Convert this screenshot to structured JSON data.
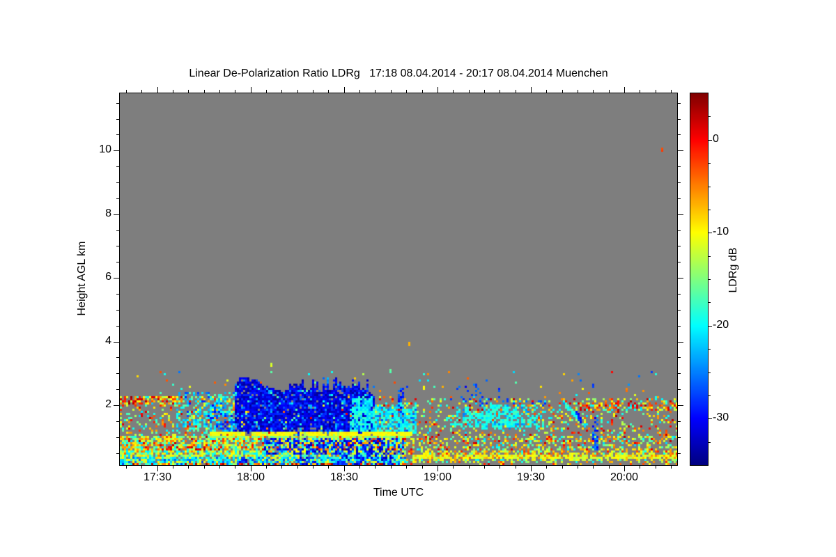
{
  "chart_data": {
    "type": "heatmap",
    "title": "Linear De-Polarization Ratio LDRg   17:18 08.04.2014 - 20:17 08.04.2014 Muenchen",
    "xlabel": "Time UTC",
    "ylabel": "Height AGL km",
    "colorbar_label": "LDRg dB",
    "time_start": "17:18",
    "time_end": "20:17",
    "date": "08.04.2014",
    "station": "Muenchen",
    "x_range_minutes": [
      0,
      179
    ],
    "y_range_km": [
      0.12,
      11.8
    ],
    "value_range_db": [
      -35,
      5
    ],
    "colormap": "jet",
    "nan_color": "#7e7e7e",
    "grid": false,
    "x_ticks": [
      {
        "label": "17:30",
        "minute": 12
      },
      {
        "label": "18:00",
        "minute": 42
      },
      {
        "label": "18:30",
        "minute": 72
      },
      {
        "label": "19:00",
        "minute": 102
      },
      {
        "label": "19:30",
        "minute": 132
      },
      {
        "label": "20:00",
        "minute": 162
      }
    ],
    "x_minor_step_minutes": 5,
    "y_ticks_km": [
      2,
      4,
      6,
      8,
      10
    ],
    "y_minor_step_km": 0.5,
    "colorbar_ticks_db": [
      0,
      -10,
      -20,
      -30
    ],
    "colorbar_minor_step_db": 2.5,
    "seed": 7,
    "features": {
      "speckle_layers": [
        {
          "desc": "mid-level noise speckle left",
          "t": [
            0,
            92
          ],
          "h": [
            1.05,
            2.3
          ],
          "density": 0.3,
          "pal": [
            [
              0.45,
              -12,
              2
            ],
            [
              0.3,
              -22,
              -15
            ],
            [
              0.25,
              -15,
              -10
            ]
          ]
        },
        {
          "desc": "mid-level noise speckle right",
          "t": [
            92,
            179
          ],
          "h": [
            1.05,
            2.25
          ],
          "density": 0.2,
          "pal": [
            [
              0.5,
              -12,
              3
            ],
            [
              0.28,
              -22,
              -15
            ],
            [
              0.22,
              -15,
              -10
            ]
          ]
        },
        {
          "desc": "sparse specks above 2.25 km",
          "t": [
            0,
            179
          ],
          "h": [
            2.25,
            3.1
          ],
          "density": 0.02,
          "pal": [
            [
              0.5,
              -12,
              0
            ],
            [
              0.3,
              -22,
              -14
            ],
            [
              0.2,
              -28,
              -24
            ]
          ]
        },
        {
          "desc": "red clutter band top-left 2.1 km",
          "t": [
            0,
            20
          ],
          "h": [
            2.02,
            2.28
          ],
          "density": 0.5,
          "pal": [
            [
              0.7,
              -8,
              4
            ],
            [
              0.3,
              -14,
              -9
            ]
          ]
        },
        {
          "desc": "cyan wisps before cloud",
          "t": [
            18,
            37
          ],
          "h": [
            1.1,
            2.4
          ],
          "density": 0.3,
          "pal": [
            [
              0.8,
              -24,
              -16
            ],
            [
              0.2,
              -29,
              -25
            ]
          ]
        },
        {
          "desc": "dense low warm speckle left 0.6-1 km",
          "t": [
            0,
            92
          ],
          "h": [
            0.6,
            1.05
          ],
          "density": 0.8,
          "pal": [
            [
              0.5,
              -13,
              -4
            ],
            [
              0.13,
              -3,
              3
            ],
            [
              0.17,
              -17,
              -13
            ],
            [
              0.2,
              -22,
              -17
            ]
          ]
        },
        {
          "desc": "low mixed layer left",
          "t": [
            0,
            92
          ],
          "h": [
            0.35,
            0.6
          ],
          "density": 0.85,
          "pal": [
            [
              0.38,
              -16,
              -9
            ],
            [
              0.37,
              -22,
              -16
            ],
            [
              0.25,
              -12,
              -4
            ]
          ]
        },
        {
          "desc": "cyan band left 0.2-0.35 km",
          "t": [
            0,
            92
          ],
          "h": [
            0.2,
            0.35
          ],
          "density": 0.88,
          "pal": [
            [
              0.55,
              -23,
              -17
            ],
            [
              0.28,
              -14,
              -8
            ],
            [
              0.17,
              -28,
              -24
            ]
          ]
        },
        {
          "desc": "multicolor ground line left",
          "t": [
            0,
            92
          ],
          "h": [
            0.12,
            0.2
          ],
          "density": 0.92,
          "pal": [
            [
              0.3,
              -8,
              0
            ],
            [
              0.2,
              2,
              5
            ],
            [
              0.2,
              -22,
              -16
            ],
            [
              0.15,
              -30,
              -25
            ],
            [
              0.15,
              -14,
              -9
            ]
          ]
        },
        {
          "desc": "low warm speckle right",
          "t": [
            92,
            179
          ],
          "h": [
            0.6,
            1.05
          ],
          "density": 0.42,
          "pal": [
            [
              0.5,
              -13,
              -4
            ],
            [
              0.15,
              -3,
              3
            ],
            [
              0.2,
              -17,
              -13
            ],
            [
              0.15,
              -22,
              -17
            ]
          ]
        },
        {
          "desc": "yellow layer right 0.45-0.6",
          "t": [
            92,
            179
          ],
          "h": [
            0.45,
            0.6
          ],
          "density": 0.6,
          "pal": [
            [
              0.6,
              -14,
              -7
            ],
            [
              0.25,
              -7,
              -1
            ],
            [
              0.15,
              -20,
              -15
            ]
          ]
        },
        {
          "desc": "low cyan-yellow right 0.2-0.33",
          "t": [
            92,
            179
          ],
          "h": [
            0.2,
            0.33
          ],
          "density": 0.45,
          "pal": [
            [
              0.5,
              -14,
              -8
            ],
            [
              0.3,
              -21,
              -15
            ],
            [
              0.2,
              -9,
              -2
            ]
          ]
        },
        {
          "desc": "sparse red ground dots right",
          "t": [
            92,
            179
          ],
          "h": [
            0.12,
            0.2
          ],
          "density": 0.2,
          "pal": [
            [
              0.7,
              -6,
              2
            ],
            [
              0.3,
              -13,
              -7
            ]
          ]
        },
        {
          "desc": "elevated clutter band right 1.9 km",
          "t": [
            146,
            179
          ],
          "h": [
            1.82,
            2.06
          ],
          "density": 0.5,
          "pal": [
            [
              0.6,
              -10,
              3
            ],
            [
              0.25,
              -14,
              -10
            ],
            [
              0.15,
              -22,
              -17
            ]
          ]
        },
        {
          "desc": "dark-blue layer below bright band",
          "t": [
            46,
            91
          ],
          "h": [
            0.42,
            0.97
          ],
          "density": 0.6,
          "pal": [
            [
              0.75,
              -33,
              -26
            ],
            [
              0.15,
              -13,
              -6
            ],
            [
              0.1,
              -22,
              -17
            ]
          ]
        },
        {
          "desc": "blue column to ground 18:15",
          "t": [
            57,
            63
          ],
          "h": [
            0.12,
            0.45
          ],
          "density": 0.5,
          "pal": [
            [
              0.85,
              -33,
              -26
            ],
            [
              0.15,
              -20,
              -14
            ]
          ]
        },
        {
          "desc": "blue columns to ground 18:28-18:46",
          "t": [
            70,
            88
          ],
          "h": [
            0.12,
            0.45
          ],
          "density": 0.5,
          "pal": [
            [
              0.8,
              -33,
              -26
            ],
            [
              0.2,
              -20,
              -14
            ]
          ]
        },
        {
          "desc": "blue column to ground 17:56",
          "t": [
            38,
            41
          ],
          "h": [
            0.12,
            0.45
          ],
          "density": 0.45,
          "pal": [
            [
              0.8,
              -33,
              -26
            ],
            [
              0.2,
              -20,
              -14
            ]
          ]
        },
        {
          "desc": "vertical blue streak 19:50",
          "t": [
            151.5,
            154
          ],
          "h": [
            0.55,
            1.6
          ],
          "density": 0.5,
          "pal": [
            [
              0.85,
              -31,
              -24
            ],
            [
              0.15,
              -20,
              -16
            ]
          ]
        },
        {
          "desc": "vertical blue streak 18:47",
          "t": [
            89,
            91
          ],
          "h": [
            1.1,
            2.55
          ],
          "density": 0.55,
          "pal": [
            [
              0.9,
              -31,
              -25
            ],
            [
              0.1,
              -22,
              -18
            ]
          ]
        },
        {
          "desc": "blue specks above cyan cloud",
          "t": [
            108,
            122
          ],
          "h": [
            2.25,
            2.7
          ],
          "density": 0.1,
          "pal": [
            [
              1,
              -31,
              -25
            ]
          ]
        },
        {
          "desc": "blue dots on cyan cloud top",
          "t": [
            105,
            137
          ],
          "h": [
            1.95,
            2.25
          ],
          "density": 0.15,
          "pal": [
            [
              0.8,
              -29,
              -24
            ],
            [
              0.2,
              -22,
              -18
            ]
          ]
        }
      ],
      "clouds": [
        {
          "desc": "main dark-blue precipitation cloud 17:55-18:40",
          "t": [
            37,
            82
          ],
          "base": 1.12,
          "top": [
            2.3,
            2.85
          ],
          "topcap": 2.9,
          "density": 0.93,
          "pal": [
            [
              0.86,
              -34,
              -28
            ],
            [
              0.12,
              -27,
              -22
            ],
            [
              0.02,
              -20,
              -16
            ]
          ]
        },
        {
          "desc": "ragged blue lead-in 17:46-17:55",
          "t": [
            28,
            37
          ],
          "base": 1.12,
          "top": [
            1.6,
            2.45
          ],
          "topcap": 2.5,
          "density": 0.45,
          "pal": [
            [
              0.5,
              -30,
              -25
            ],
            [
              0.5,
              -24,
              -18
            ]
          ]
        },
        {
          "desc": "cyan transition 18:32-18:53",
          "t": [
            74,
            95
          ],
          "base": 1.12,
          "top": [
            1.9,
            2.25
          ],
          "topcap": 2.3,
          "density": 0.8,
          "pal": [
            [
              0.8,
              -22,
              -17
            ],
            [
              0.2,
              -27,
              -23
            ]
          ]
        },
        {
          "desc": "cyan cloud 19:03-19:35",
          "t": [
            105,
            137
          ],
          "base": 1.28,
          "top": [
            1.75,
            2.05
          ],
          "topcap": 2.1,
          "density": 0.78,
          "fade": 10,
          "pal": [
            [
              0.88,
              -21,
              -17
            ],
            [
              0.12,
              -25,
              -22
            ]
          ]
        }
      ],
      "bands": [
        {
          "desc": "melting-layer bright band yellow core ~1.05 km",
          "t": [
            29,
            94
          ],
          "h": [
            1.02,
            1.14
          ],
          "density": 0.96,
          "pal": [
            [
              0.9,
              -11,
              -9
            ],
            [
              0.1,
              -14,
              -12
            ]
          ],
          "gaps": [
            [
              40,
              42
            ],
            [
              56.5,
              58
            ]
          ]
        },
        {
          "desc": "bright band green lower edge",
          "t": [
            29,
            94
          ],
          "h": [
            0.96,
            1.02
          ],
          "density": 0.75,
          "pal": [
            [
              1,
              -16,
              -13
            ]
          ],
          "gaps": [
            [
              40,
              42
            ],
            [
              56.5,
              58
            ]
          ]
        },
        {
          "desc": "bright band green upper edge",
          "t": [
            29,
            94
          ],
          "h": [
            1.14,
            1.2
          ],
          "density": 0.7,
          "pal": [
            [
              1,
              -16,
              -13
            ]
          ],
          "gaps": [
            [
              40,
              42
            ],
            [
              56.5,
              58
            ]
          ]
        },
        {
          "desc": "low yellow-green band right ~0.4 km",
          "t": [
            94,
            179
          ],
          "h": [
            0.33,
            0.44
          ],
          "density": 0.9,
          "pal": [
            [
              0.75,
              -13,
              -9
            ],
            [
              0.25,
              -9,
              -4
            ]
          ],
          "gaps": []
        }
      ],
      "diagonals": [
        {
          "desc": "descending cyan streak 19:40-19:48",
          "t": [
            142,
            150
          ],
          "h": [
            2.15,
            1.3
          ],
          "w": 0.09,
          "pal": [
            [
              0.8,
              -20,
              -17
            ],
            [
              0.2,
              -24,
              -21
            ]
          ]
        },
        {
          "desc": "dark blue blob on streak",
          "t": [
            146,
            148.5
          ],
          "h": [
            1.75,
            1.5
          ],
          "w": 0.12,
          "pal": [
            [
              1,
              -31,
              -27
            ]
          ]
        }
      ],
      "dots": [
        {
          "t": 174.5,
          "h": 10.05,
          "v": -3
        },
        {
          "t": 93,
          "h": 3.95,
          "v": -7
        },
        {
          "t": 49,
          "h": 3.3,
          "v": -12
        },
        {
          "t": 60.5,
          "h": 2.95,
          "v": -20
        },
        {
          "t": 87,
          "h": 3.1,
          "v": -16
        },
        {
          "t": 135,
          "h": 2.55,
          "v": -9
        },
        {
          "t": 20,
          "h": 2.5,
          "v": -19
        },
        {
          "t": 152,
          "h": 2.62,
          "v": -28
        },
        {
          "t": 163,
          "h": 2.5,
          "v": -5
        },
        {
          "t": 118,
          "h": 2.78,
          "v": -26
        },
        {
          "t": 98,
          "h": 2.6,
          "v": -10
        },
        {
          "t": 78,
          "h": 2.95,
          "v": -13
        }
      ]
    }
  }
}
